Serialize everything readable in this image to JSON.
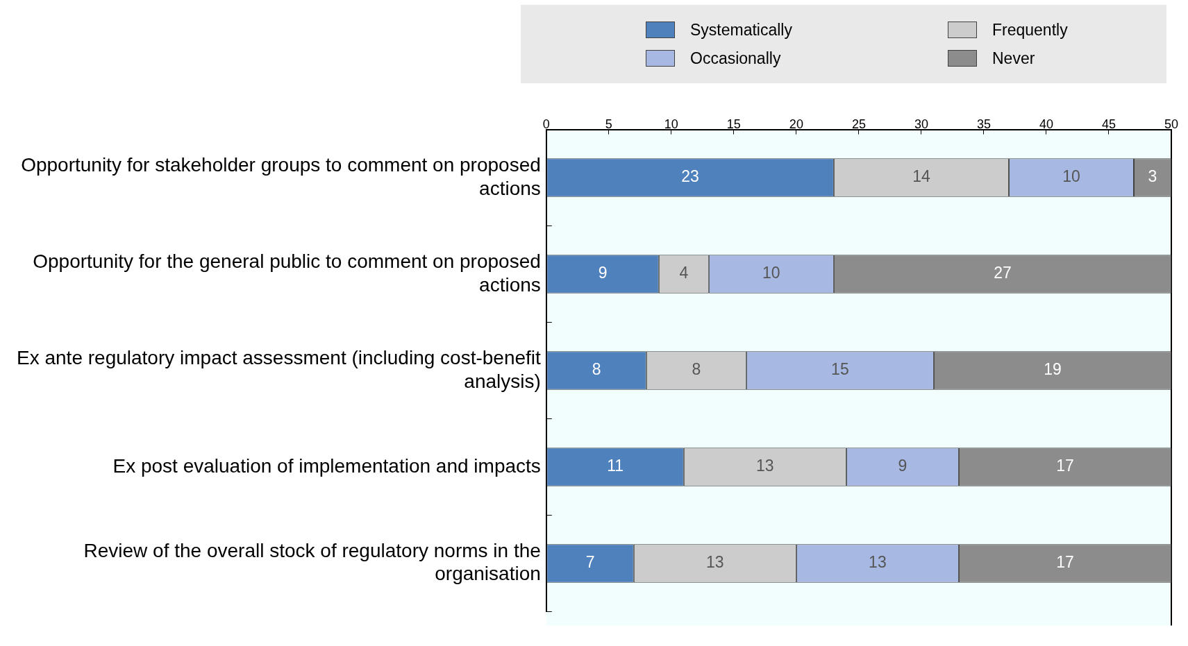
{
  "chart_data": {
    "type": "bar",
    "orientation": "horizontal",
    "stacked": true,
    "categories": [
      "Opportunity for stakeholder groups to comment on proposed actions",
      "Opportunity for the general public to comment on proposed actions",
      "Ex ante regulatory impact assessment (including cost-benefit analysis)",
      "Ex post evaluation of implementation and impacts",
      "Review of the overall stock of regulatory norms in the organisation"
    ],
    "series": [
      {
        "name": "Systematically",
        "color": "#4f81bd",
        "values": [
          23,
          9,
          8,
          11,
          7
        ]
      },
      {
        "name": "Frequently",
        "color": "#cccccc",
        "values": [
          14,
          4,
          8,
          13,
          13
        ]
      },
      {
        "name": "Occasionally",
        "color": "#a7b9e3",
        "values": [
          10,
          10,
          15,
          9,
          13
        ]
      },
      {
        "name": "Never",
        "color": "#8c8c8c",
        "values": [
          3,
          27,
          19,
          17,
          17
        ]
      }
    ],
    "xlim": [
      0,
      50
    ],
    "xticks": [
      0,
      5,
      10,
      15,
      20,
      25,
      30,
      35,
      40,
      45,
      50
    ],
    "data_labels": true,
    "legend": "top",
    "grid": false
  }
}
